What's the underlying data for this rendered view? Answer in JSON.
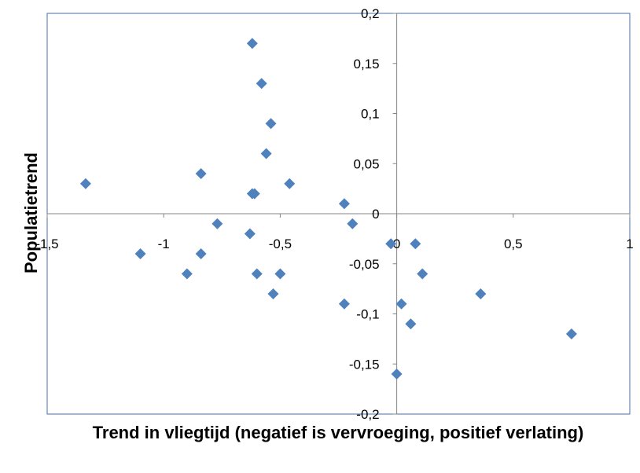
{
  "chart_data": {
    "type": "scatter",
    "x_label": "Trend in vliegtijd (negatief is vervroeging, positief verlating)",
    "y_label": "Populatietrend",
    "color": "#4f81bd",
    "series": [
      {
        "name": "Populatietrend",
        "color": "#4f81bd",
        "x": [
          -1.335,
          -1.1,
          -0.9,
          -0.84,
          -0.84,
          -0.77,
          -0.63,
          -0.62,
          -0.62,
          -0.61,
          -0.6,
          -0.58,
          -0.56,
          -0.54,
          -0.53,
          -0.5,
          -0.46,
          -0.225,
          -0.225,
          -0.19,
          -0.025,
          0.0,
          0.02,
          0.06,
          0.08,
          0.11,
          0.36,
          0.75
        ],
        "values": [
          0.03,
          -0.04,
          -0.06,
          0.04,
          -0.04,
          -0.01,
          -0.02,
          0.17,
          0.02,
          0.02,
          -0.06,
          0.13,
          0.06,
          0.09,
          -0.08,
          -0.06,
          0.03,
          0.01,
          -0.09,
          -0.01,
          -0.03,
          -0.16,
          -0.09,
          -0.11,
          -0.03,
          -0.06,
          -0.08,
          -0.12
        ]
      }
    ],
    "xlim": [
      -1.5,
      1
    ],
    "xticks": [
      {
        "value": -1.5,
        "label": "-1,5"
      },
      -1,
      {
        "value": -0.5,
        "label": "-0,5"
      },
      0,
      {
        "value": 0.5,
        "label": "0,5"
      },
      1
    ],
    "ylim": [
      -0.2,
      0.2
    ],
    "yticks": [
      {
        "value": -0.2,
        "label": "-0,2"
      },
      {
        "value": -0.15,
        "label": "-0,15"
      },
      {
        "value": -0.1,
        "label": "-0,1"
      },
      {
        "value": -0.05,
        "label": "-0,05"
      },
      0,
      {
        "value": 0.05,
        "label": "0,05"
      },
      {
        "value": 0.1,
        "label": "0,1"
      },
      {
        "value": 0.15,
        "label": "0,15"
      },
      {
        "value": 0.2,
        "label": "0,2"
      }
    ]
  }
}
